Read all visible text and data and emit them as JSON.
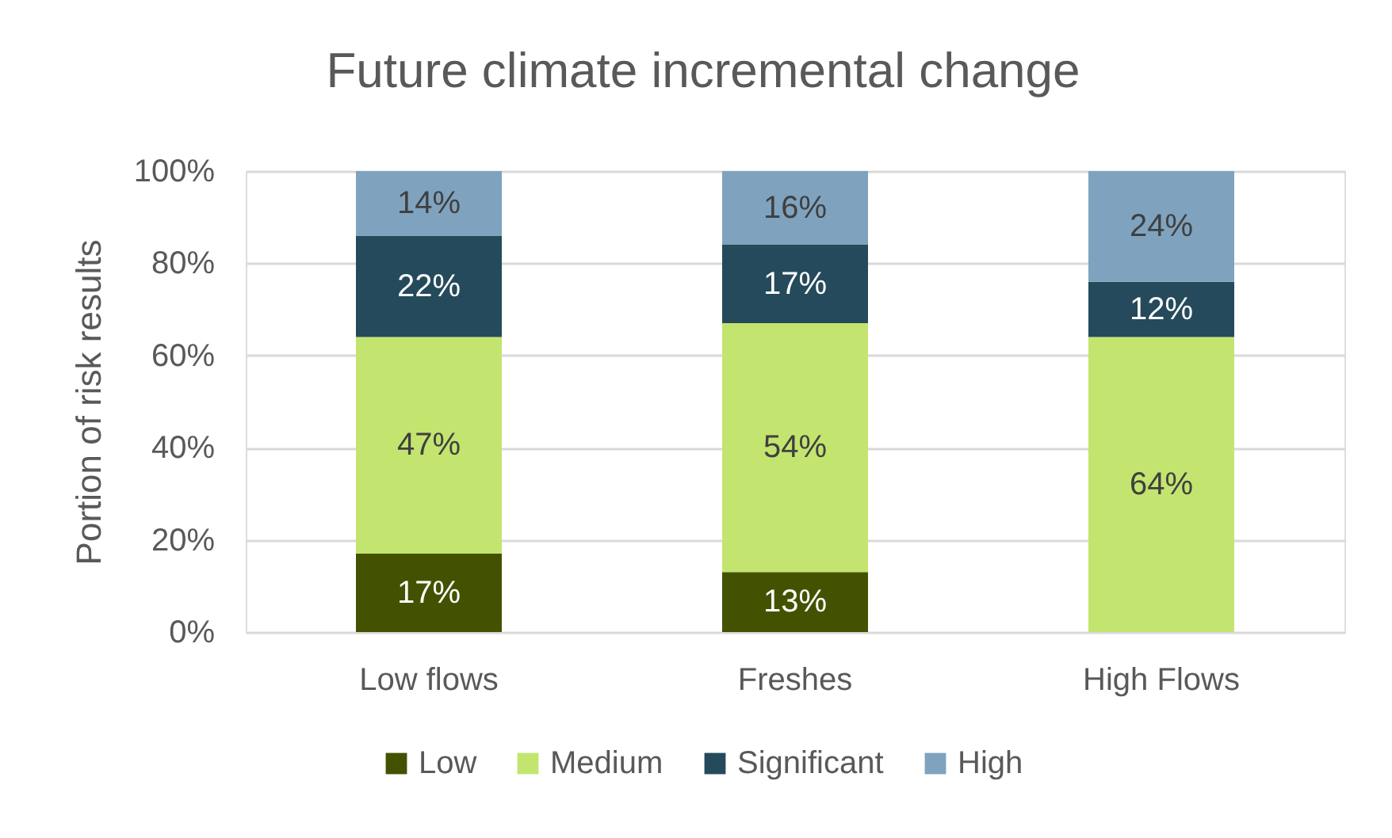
{
  "chart_data": {
    "type": "bar",
    "title": "Future climate incremental change",
    "ylabel": "Portion of risk results",
    "categories": [
      "Low flows",
      "Freshes",
      "High Flows"
    ],
    "series": [
      {
        "name": "Low",
        "color": "#435200",
        "values": [
          17,
          13,
          0
        ],
        "value_labels": [
          "17%",
          "13%",
          null
        ]
      },
      {
        "name": "Medium",
        "color": "#c3e56f",
        "values": [
          47,
          54,
          64
        ],
        "value_labels": [
          "47%",
          "54%",
          "64%"
        ]
      },
      {
        "name": "Significant",
        "color": "#254a5b",
        "values": [
          22,
          17,
          12
        ],
        "value_labels": [
          "22%",
          "17%",
          "12%"
        ]
      },
      {
        "name": "High",
        "color": "#7fa3bf",
        "values": [
          14,
          16,
          24
        ],
        "value_labels": [
          "14%",
          "16%",
          "24%"
        ]
      }
    ],
    "stacked": true,
    "ylim": [
      0,
      100
    ],
    "yticks": [
      {
        "value": 0,
        "label": "0%"
      },
      {
        "value": 20,
        "label": "20%"
      },
      {
        "value": 40,
        "label": "40%"
      },
      {
        "value": 60,
        "label": "60%"
      },
      {
        "value": 80,
        "label": "80%"
      },
      {
        "value": 100,
        "label": "100%"
      }
    ],
    "grid": "y",
    "legend": "bottom"
  }
}
